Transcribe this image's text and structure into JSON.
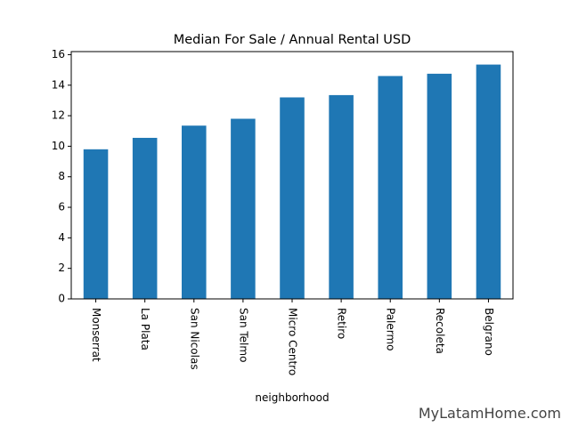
{
  "chart_data": {
    "type": "bar",
    "title": "Median For Sale / Annual Rental USD",
    "xlabel": "neighborhood",
    "ylabel": "",
    "categories": [
      "Monserrat",
      "La Plata",
      "San Nicolas",
      "San Telmo",
      "Micro Centro",
      "Retiro",
      "Palermo",
      "Recoleta",
      "Belgrano"
    ],
    "values": [
      9.8,
      10.55,
      11.35,
      11.8,
      13.2,
      13.35,
      14.6,
      14.75,
      15.35
    ],
    "ylim": [
      0,
      16.2
    ],
    "yticks": [
      0,
      2,
      4,
      6,
      8,
      10,
      12,
      14,
      16
    ],
    "bar_color": "#1f77b4",
    "grid": false,
    "legend": false
  },
  "watermark": "MyLatamHome.com"
}
